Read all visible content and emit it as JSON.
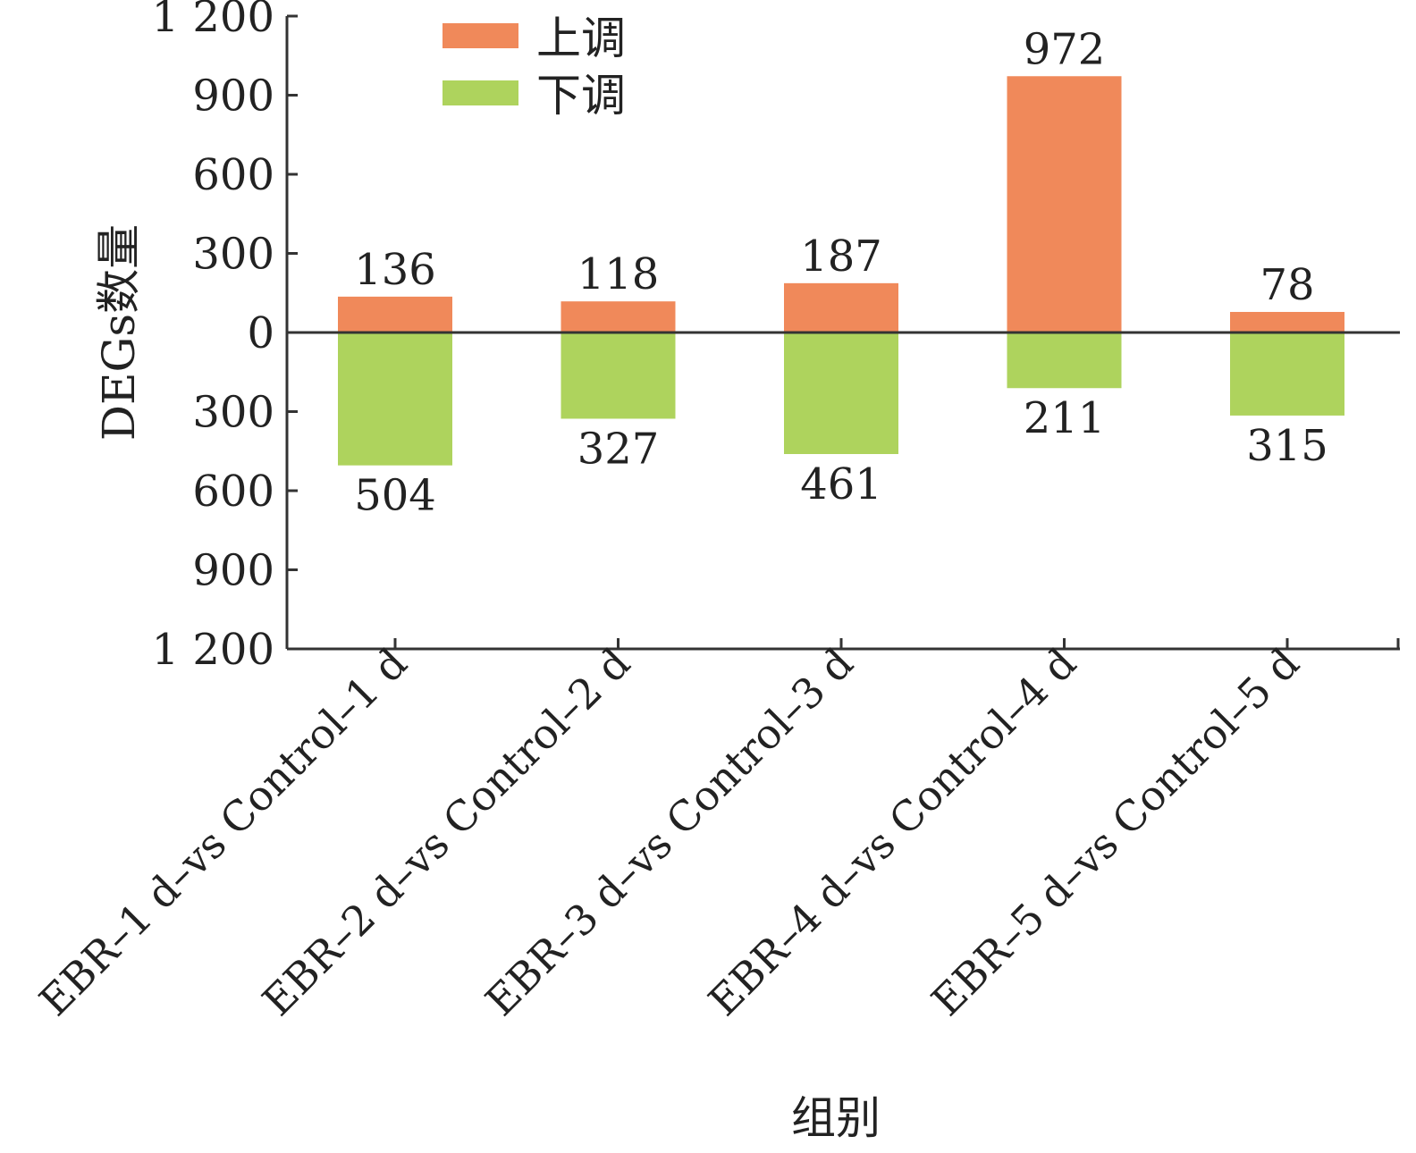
{
  "chart_data": {
    "type": "bar",
    "title": "",
    "xlabel": "组别",
    "ylabel": "DEGs数量",
    "ylim": [
      -1200,
      1200
    ],
    "yticks": [
      1200,
      900,
      600,
      300,
      0,
      -300,
      -600,
      -900,
      -1200
    ],
    "ytick_labels": [
      "1 200",
      "900",
      "600",
      "300",
      "0",
      "300",
      "600",
      "900",
      "1 200"
    ],
    "categories": [
      "EBR–1 d–vs Control–1 d",
      "EBR–2 d–vs Control–2 d",
      "EBR–3 d–vs Control–3 d",
      "EBR–4 d–vs Control–4 d",
      "EBR–5 d–vs Control–5 d"
    ],
    "series": [
      {
        "name": "上调",
        "color": "#F0895A",
        "values": [
          136,
          118,
          187,
          972,
          78
        ],
        "labels": [
          "136",
          "118",
          "187",
          "972",
          "78"
        ]
      },
      {
        "name": "下调",
        "color": "#AED35D",
        "values": [
          -504,
          -327,
          -461,
          -211,
          -315
        ],
        "labels": [
          "504",
          "327",
          "461",
          "211",
          "315"
        ]
      }
    ],
    "legend": "top-left",
    "grid": false
  }
}
